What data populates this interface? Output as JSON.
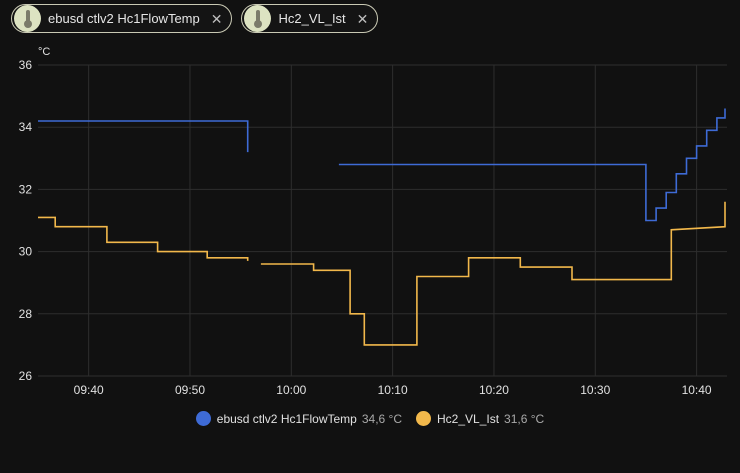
{
  "chips": [
    {
      "label": "ebusd ctlv2 Hc1FlowTemp",
      "icon": "thermometer-icon"
    },
    {
      "label": "Hc2_VL_Ist",
      "icon": "thermometer-icon"
    }
  ],
  "legend": [
    {
      "name": "ebusd ctlv2 Hc1FlowTemp",
      "value": "34,6 °C",
      "color": "#3e6bd6"
    },
    {
      "name": "Hc2_VL_Ist",
      "value": "31,6 °C",
      "color": "#f2b84b"
    }
  ],
  "chart_data": {
    "type": "line",
    "unit": "°C",
    "ylim": [
      26,
      36
    ],
    "yticks": [
      "26",
      "28",
      "30",
      "32",
      "34",
      "36"
    ],
    "xlim": [
      "09:35",
      "10:43"
    ],
    "xticks": [
      "09:40",
      "09:50",
      "10:00",
      "10:10",
      "10:20",
      "10:30",
      "10:40"
    ],
    "grid": true,
    "series": [
      {
        "name": "ebusd ctlv2 Hc1FlowTemp",
        "color": "#3e6bd6",
        "segments": [
          [
            [
              "09:35",
              34.2
            ],
            [
              "09:55.7",
              34.2
            ],
            [
              "09:55.7",
              33.2
            ]
          ],
          [
            [
              "10:04.7",
              32.8
            ],
            [
              "10:35",
              32.8
            ],
            [
              "10:35",
              31.0
            ],
            [
              "10:36",
              31.0
            ],
            [
              "10:36",
              31.4
            ],
            [
              "10:37",
              31.4
            ],
            [
              "10:37",
              31.9
            ],
            [
              "10:38",
              31.9
            ],
            [
              "10:38",
              32.5
            ],
            [
              "10:39",
              32.5
            ],
            [
              "10:39",
              33.0
            ],
            [
              "10:40",
              33.0
            ],
            [
              "10:40",
              33.4
            ],
            [
              "10:41",
              33.4
            ],
            [
              "10:41",
              33.9
            ],
            [
              "10:42",
              33.9
            ],
            [
              "10:42",
              34.3
            ],
            [
              "10:42.8",
              34.3
            ],
            [
              "10:42.8",
              34.6
            ]
          ]
        ]
      },
      {
        "name": "Hc2_VL_Ist",
        "color": "#f2b84b",
        "segments": [
          [
            [
              "09:35",
              31.1
            ],
            [
              "09:36.7",
              31.1
            ],
            [
              "09:36.7",
              30.8
            ],
            [
              "09:41.8",
              30.8
            ],
            [
              "09:41.8",
              30.3
            ],
            [
              "09:46.8",
              30.3
            ],
            [
              "09:46.8",
              30.0
            ],
            [
              "09:51.7",
              30.0
            ],
            [
              "09:51.7",
              29.8
            ],
            [
              "09:55.7",
              29.8
            ],
            [
              "09:55.7",
              29.7
            ]
          ],
          [
            [
              "09:57",
              29.6
            ],
            [
              "10:02.2",
              29.6
            ],
            [
              "10:02.2",
              29.4
            ],
            [
              "10:05.8",
              29.4
            ],
            [
              "10:05.8",
              28.0
            ],
            [
              "10:07.2",
              28.0
            ],
            [
              "10:07.2",
              27.0
            ],
            [
              "10:12.4",
              27.0
            ],
            [
              "10:12.4",
              29.2
            ],
            [
              "10:17.5",
              29.2
            ],
            [
              "10:17.5",
              29.8
            ],
            [
              "10:22.6",
              29.8
            ],
            [
              "10:22.6",
              29.5
            ],
            [
              "10:27.7",
              29.5
            ],
            [
              "10:27.7",
              29.1
            ],
            [
              "10:37.5",
              29.1
            ],
            [
              "10:37.5",
              30.7
            ],
            [
              "10:42.8",
              30.8
            ],
            [
              "10:42.8",
              31.6
            ]
          ]
        ]
      }
    ]
  }
}
